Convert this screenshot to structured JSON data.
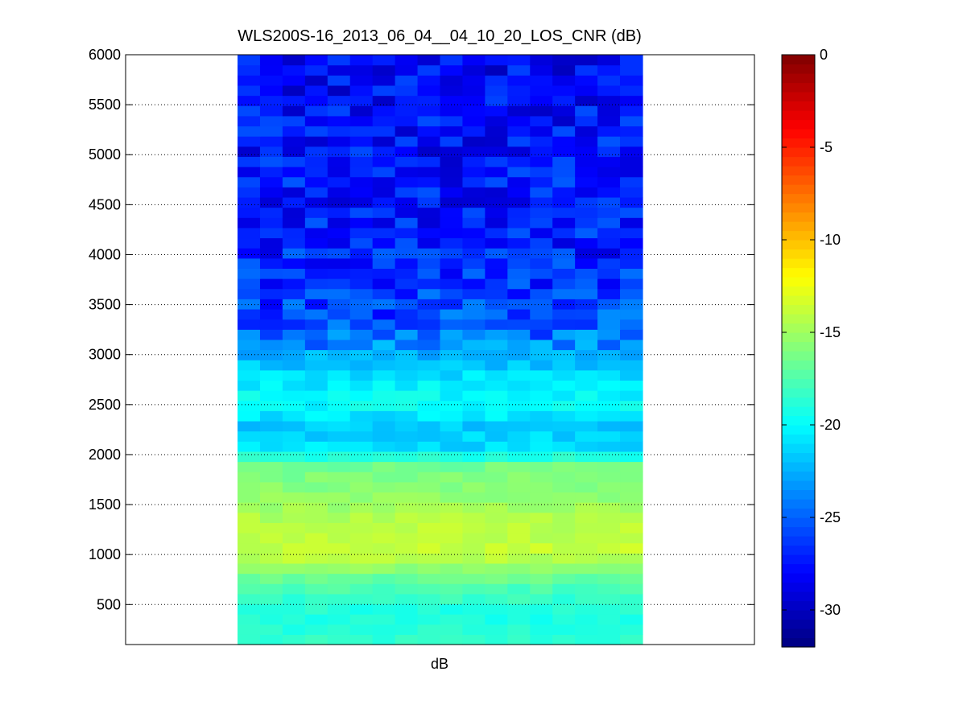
{
  "chart_data": {
    "type": "heatmap",
    "title": "WLS200S-16_2013_06_04__04_10_20_LOS_CNR (dB)",
    "xlabel": "dB",
    "ylabel": "",
    "ylim": [
      100,
      6000
    ],
    "y_ticks": [
      500,
      1000,
      1500,
      2000,
      2500,
      3000,
      3500,
      4000,
      4500,
      5000,
      5500,
      6000
    ],
    "grid": "y-dotted",
    "colormap": "jet",
    "colorbar": {
      "placement": "right",
      "range": [
        -32,
        0
      ],
      "ticks": [
        0,
        -5,
        -10,
        -15,
        -20,
        -25,
        -30
      ]
    },
    "columns": 18,
    "rows": 58,
    "row_range_m": [
      100,
      6000
    ],
    "column_extent_fraction": [
      0.178,
      0.822
    ],
    "profile_db": [
      {
        "range": 100,
        "value": -18.5
      },
      {
        "range": 400,
        "value": -19.2
      },
      {
        "range": 700,
        "value": -17.5
      },
      {
        "range": 1000,
        "value": -13.8
      },
      {
        "range": 1300,
        "value": -14.2
      },
      {
        "range": 1600,
        "value": -15.5
      },
      {
        "range": 1900,
        "value": -16.5
      },
      {
        "range": 2050,
        "value": -21.0
      },
      {
        "range": 2300,
        "value": -21.5
      },
      {
        "range": 2500,
        "value": -19.8
      },
      {
        "range": 2700,
        "value": -20.5
      },
      {
        "range": 2800,
        "value": -21.0
      },
      {
        "range": 3000,
        "value": -22.5
      },
      {
        "range": 3300,
        "value": -25.5
      },
      {
        "range": 3700,
        "value": -26.5
      },
      {
        "range": 4200,
        "value": -27.0
      },
      {
        "range": 5000,
        "value": -27.5
      },
      {
        "range": 6000,
        "value": -28.0
      }
    ]
  }
}
